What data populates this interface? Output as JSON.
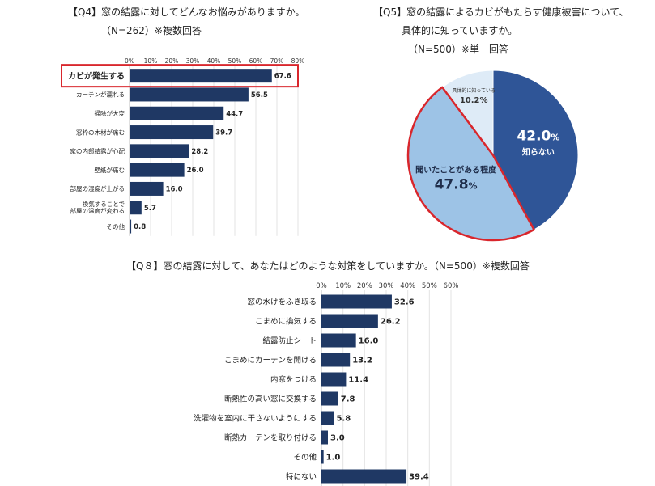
{
  "q4": {
    "title_line1": "【Q4】窓の結露に対してどんなお悩みがありますか。",
    "title_line2": "（N=262）※複数回答",
    "chart_data": {
      "type": "bar",
      "orientation": "horizontal",
      "categories": [
        "カビが発生する",
        "カーテンが濡れる",
        "掃除が大変",
        "窓枠の木材が痛む",
        "家の内部結露が心配",
        "壁紙が痛む",
        "部屋の湿度が上がる",
        "換気することで\n部屋の温度が変わる",
        "その他"
      ],
      "values": [
        67.6,
        56.5,
        44.7,
        39.7,
        28.2,
        26.0,
        16.0,
        5.7,
        0.8
      ],
      "value_labels": [
        "67.6",
        "56.5",
        "44.7",
        "39.7",
        "28.2",
        "26.0",
        "16.0",
        "5.7",
        "0.8"
      ],
      "ticks": [
        "0%",
        "10%",
        "20%",
        "30%",
        "40%",
        "50%",
        "60%",
        "70%",
        "80%"
      ],
      "xlim": [
        0,
        80
      ],
      "highlight_category": "カビが発生する",
      "bar_color": "#1f3864",
      "highlight_color": "#d9262c",
      "grid": true
    }
  },
  "q5": {
    "title_line1": "【Q5】窓の結露によるカビがもたらす健康被害について、",
    "title_line2": "具体的に知っていますか。",
    "title_line3": "（N=500）※単一回答",
    "chart_data": {
      "type": "pie",
      "slices": [
        {
          "label": "知らない",
          "value": 42.0,
          "value_text": "42.0",
          "color": "#2f5597"
        },
        {
          "label": "聞いたことがある程度",
          "value": 47.8,
          "value_text": "47.8",
          "color": "#9dc3e6"
        },
        {
          "label": "具体的に知っている",
          "value": 10.2,
          "value_text": "10.2%",
          "color": "#deebf7"
        }
      ],
      "percent_sign": "%",
      "highlight_slice": "聞いたことがある程度",
      "highlight_color": "#d9262c"
    }
  },
  "q8": {
    "title": "【Q８】窓の結露に対して、あなたはどのような対策をしていますか。（N=500）※複数回答",
    "chart_data": {
      "type": "bar",
      "orientation": "horizontal",
      "categories": [
        "窓の水けをふき取る",
        "こまめに換気する",
        "結露防止シート",
        "こまめにカーテンを開ける",
        "内窓をつける",
        "断熱性の高い窓に交換する",
        "洗濯物を室内に干さないようにする",
        "断熱カーテンを取り付ける",
        "その他",
        "特にない"
      ],
      "values": [
        32.6,
        26.2,
        16.0,
        13.2,
        11.4,
        7.8,
        5.8,
        3.0,
        1.0,
        39.4
      ],
      "value_labels": [
        "32.6",
        "26.2",
        "16.0",
        "13.2",
        "11.4",
        "7.8",
        "5.8",
        "3.0",
        "1.0",
        "39.4"
      ],
      "ticks": [
        "0%",
        "10%",
        "20%",
        "30%",
        "40%",
        "50%",
        "60%"
      ],
      "xlim": [
        0,
        60
      ],
      "bar_color": "#1f3864",
      "grid": true
    }
  }
}
